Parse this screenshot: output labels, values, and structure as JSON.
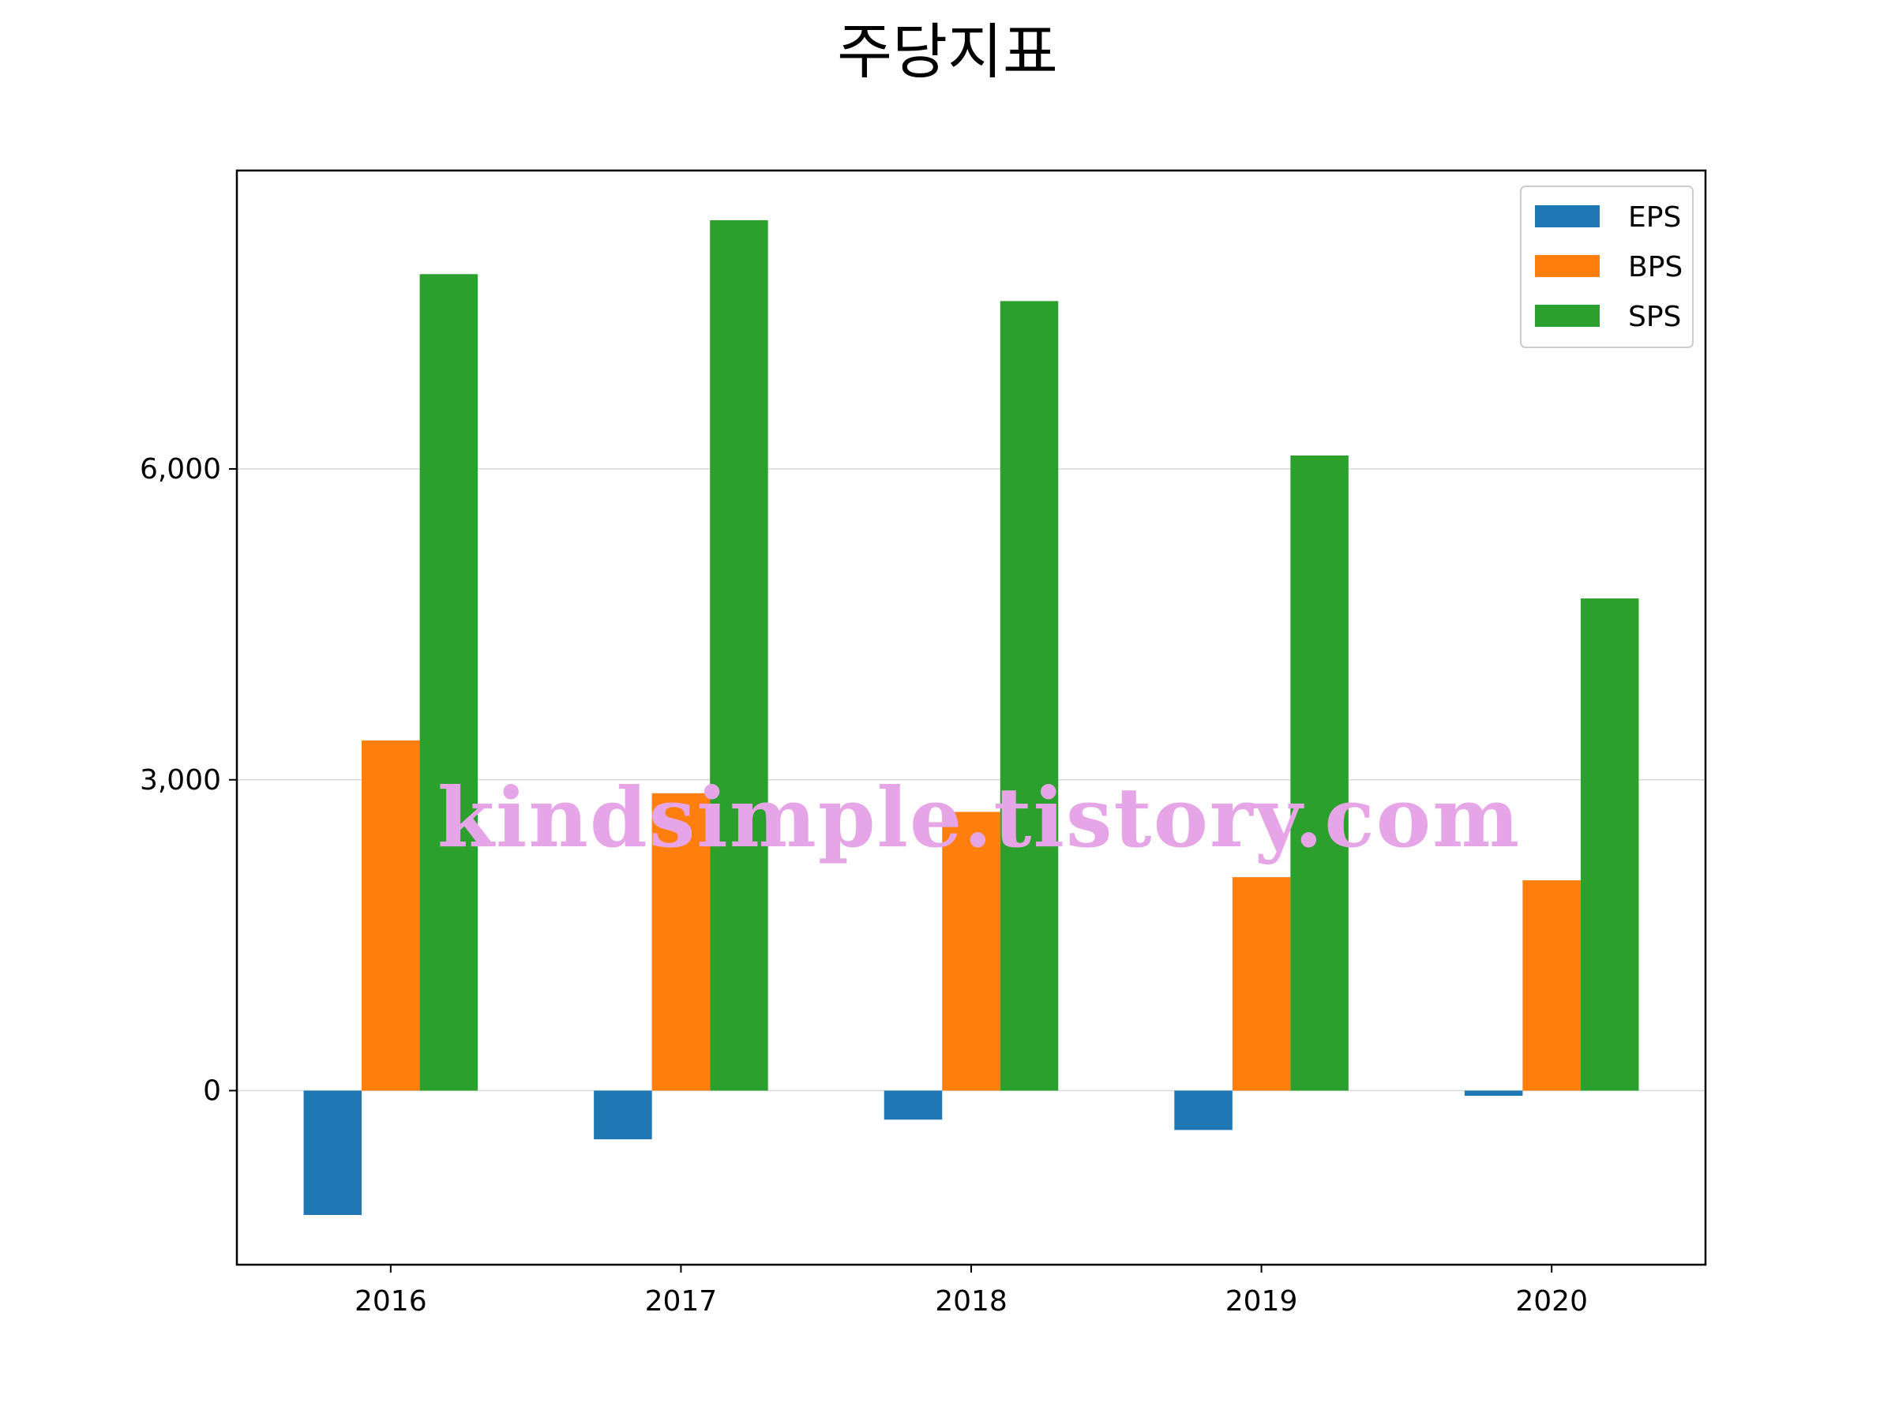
{
  "chart_data": {
    "type": "bar",
    "title": "주당지표",
    "xlabel": "",
    "ylabel": "",
    "categories": [
      "2016",
      "2017",
      "2018",
      "2019",
      "2020"
    ],
    "series": [
      {
        "name": "EPS",
        "color": "#1f77b4",
        "values": [
          -1200,
          -470,
          -280,
          -380,
          -50
        ]
      },
      {
        "name": "BPS",
        "color": "#ff7f0e",
        "values": [
          3380,
          2870,
          2690,
          2060,
          2030
        ]
      },
      {
        "name": "SPS",
        "color": "#2ca02c",
        "values": [
          7880,
          8400,
          7620,
          6130,
          4750
        ]
      }
    ],
    "yticks": [
      0,
      3000,
      6000
    ],
    "ytick_labels": [
      "0",
      "3,000",
      "6,000"
    ],
    "ylim": [
      -1680,
      8880
    ],
    "grid": "horizontal",
    "legend_position": "top-right"
  },
  "watermark": "kindsimple.tistory.com"
}
